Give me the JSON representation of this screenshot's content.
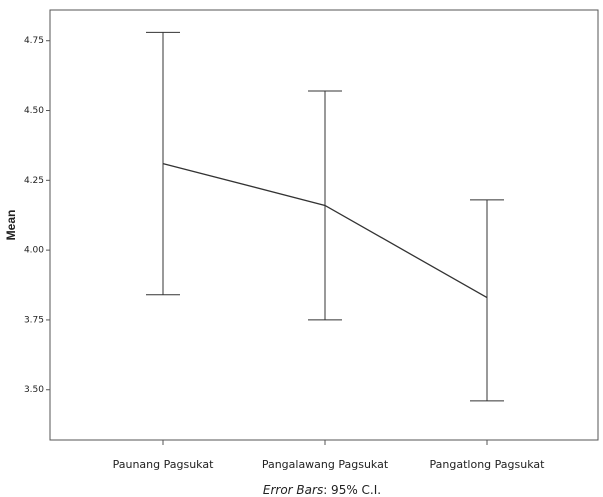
{
  "chart_data": {
    "type": "line",
    "y_label": "Mean",
    "categories": [
      "Paunang Pagsukat",
      "Pangalawang Pagsukat",
      "Pangatlong Pagsukat"
    ],
    "series": [
      {
        "color": "#333333",
        "values": [
          4.31,
          4.16,
          3.83
        ],
        "lower": [
          3.84,
          3.75,
          3.46
        ],
        "upper": [
          4.78,
          4.57,
          4.18
        ]
      }
    ],
    "ylim": [
      3.32,
      4.86
    ],
    "yticks": [
      {
        "value": 3.5,
        "label": "3.50"
      },
      3.75,
      {
        "value": 4.0,
        "label": "4.00"
      },
      4.25,
      {
        "value": 4.5,
        "label": "4.50"
      },
      4.75
    ],
    "grid": false,
    "caption_label": "Error Bars",
    "caption_text": ": 95% C.I."
  }
}
